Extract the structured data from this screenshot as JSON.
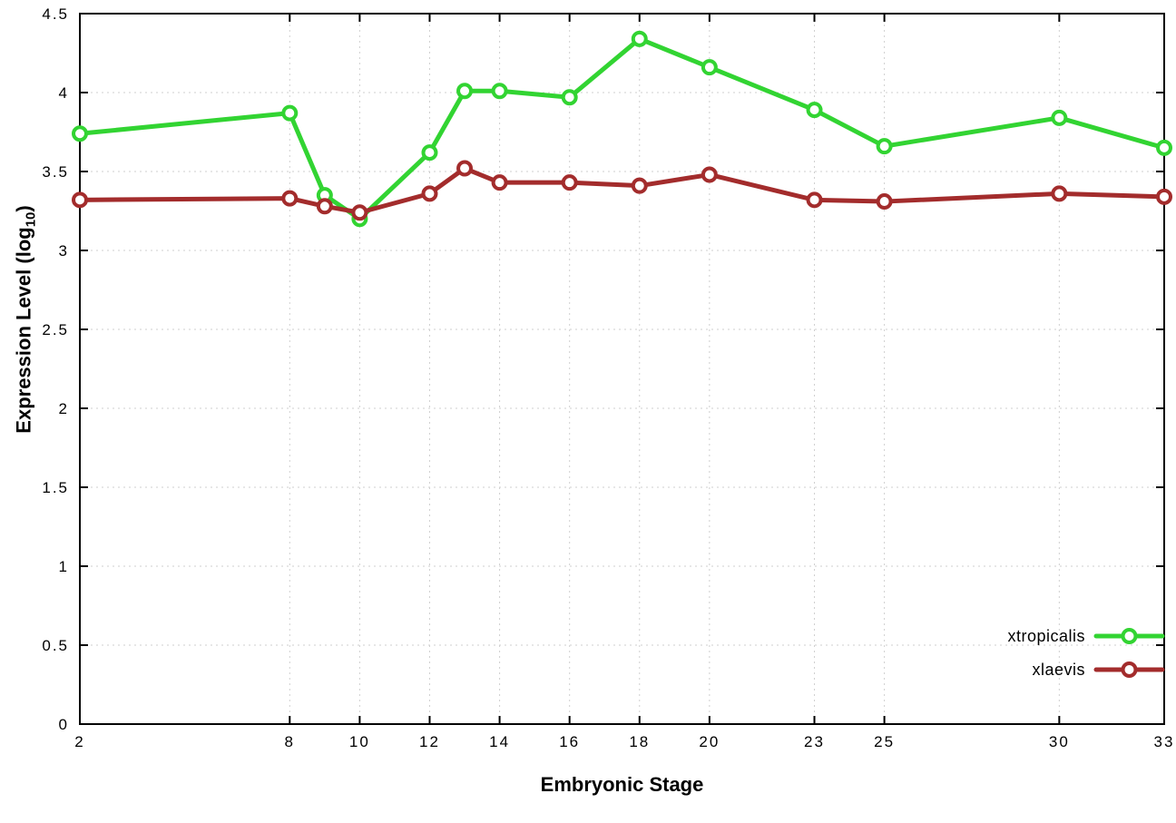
{
  "chart_data": {
    "type": "line",
    "title": "",
    "xlabel": "Embryonic Stage",
    "ylabel": "Expression Level (log10)",
    "ylabel_prefix": "Expression Level (log",
    "ylabel_sub": "10",
    "ylabel_suffix": ")",
    "xlim": [
      2,
      33
    ],
    "ylim": [
      0,
      4.5
    ],
    "xticks": [
      2,
      8,
      10,
      12,
      14,
      16,
      18,
      20,
      23,
      25,
      30,
      33
    ],
    "yticks": [
      0,
      0.5,
      1,
      1.5,
      2,
      2.5,
      3,
      3.5,
      4,
      4.5
    ],
    "ytick_labels": [
      "0",
      "0.5",
      "1",
      "1.5",
      "2",
      "2.5",
      "3",
      "3.5",
      "4",
      "4.5"
    ],
    "grid": true,
    "legend_position": "bottom-right",
    "x": [
      2,
      8,
      9,
      10,
      12,
      13,
      14,
      16,
      18,
      20,
      23,
      25,
      30,
      33
    ],
    "series": [
      {
        "name": "xtropicalis",
        "color": "#32d432",
        "marker": "open-circle",
        "values": [
          3.74,
          3.87,
          3.35,
          3.2,
          3.62,
          4.01,
          4.01,
          3.97,
          4.34,
          4.16,
          3.89,
          3.66,
          3.84,
          3.65
        ]
      },
      {
        "name": "xlaevis",
        "color": "#a32c2c",
        "marker": "open-circle",
        "values": [
          3.32,
          3.33,
          3.28,
          3.24,
          3.36,
          3.52,
          3.43,
          3.43,
          3.41,
          3.48,
          3.32,
          3.31,
          3.36,
          3.34
        ]
      }
    ],
    "colors": {
      "grid": "#cfcfcf",
      "axis": "#000000",
      "background": "#ffffff"
    }
  }
}
